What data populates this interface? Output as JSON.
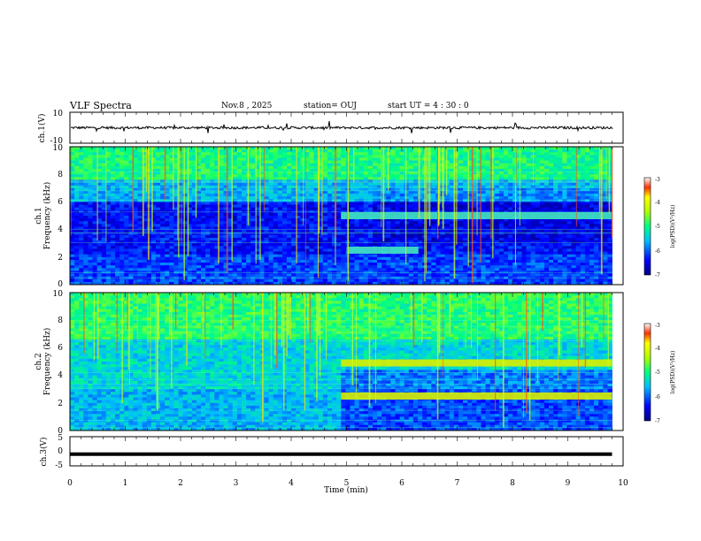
{
  "header": {
    "title": "VLF Spectra",
    "date": "Nov.8 , 2025",
    "station": "station= OUJ",
    "start_ut": "start UT = 4 : 30 : 0"
  },
  "chart_data": [
    {
      "id": "ch1-waveform",
      "type": "line",
      "ylabel": "ch.1(V)",
      "ylim": [
        -10,
        10
      ],
      "yticks": [
        "10",
        "-10"
      ],
      "xlim": [
        0,
        10
      ],
      "baseline": 0
    },
    {
      "id": "ch1-spectrogram",
      "type": "heatmap",
      "ylabel_line1": "ch.1",
      "ylabel_line2": "Frequency (kHz)",
      "ylim": [
        0,
        10
      ],
      "yticks": [
        "0",
        "2",
        "4",
        "6",
        "8",
        "10"
      ],
      "xlim": [
        0,
        10
      ],
      "data_end_min": 9.8,
      "colorbar": {
        "label": "log(PSD)(V²/Hz)",
        "range": [
          -7,
          -3
        ],
        "ticks": [
          "-3",
          "-4",
          "-5",
          "-6",
          "-7"
        ]
      },
      "bands_khz": [
        {
          "freq": 5.0,
          "start_min": 4.9,
          "end_min": 9.8
        },
        {
          "freq": 2.5,
          "start_min": 5.0,
          "end_min": 6.3
        }
      ]
    },
    {
      "id": "ch2-spectrogram",
      "type": "heatmap",
      "ylabel_line1": "ch.2",
      "ylabel_line2": "Frequency (kHz)",
      "ylim": [
        0,
        10
      ],
      "yticks": [
        "0",
        "2",
        "4",
        "6",
        "8",
        "10"
      ],
      "xlim": [
        0,
        10
      ],
      "data_end_min": 9.8,
      "colorbar": {
        "label": "log(PSD)(V²/Hz)",
        "range": [
          -7,
          -3
        ],
        "ticks": [
          "-3",
          "-4",
          "-5",
          "-6",
          "-7"
        ]
      },
      "bands_khz": [
        {
          "freq": 4.9,
          "start_min": 4.9,
          "end_min": 9.8
        },
        {
          "freq": 2.5,
          "start_min": 4.9,
          "end_min": 9.8
        }
      ]
    },
    {
      "id": "ch3-waveform",
      "type": "line",
      "ylabel": "ch.3(V)",
      "ylim": [
        -5,
        5
      ],
      "yticks": [
        "5",
        "0",
        "-5"
      ],
      "xlim": [
        0,
        10
      ],
      "baseline": -1
    }
  ],
  "x_axis": {
    "label": "Time (min)",
    "ticks": [
      "0",
      "1",
      "2",
      "3",
      "4",
      "5",
      "6",
      "7",
      "8",
      "9",
      "10"
    ]
  }
}
